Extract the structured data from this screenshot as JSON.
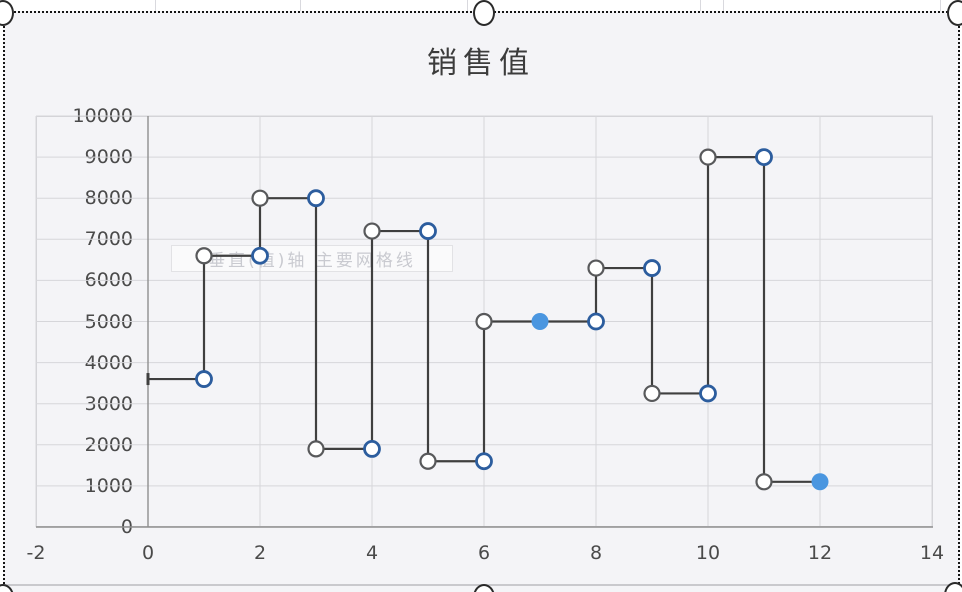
{
  "chart": {
    "title": "销售值",
    "ghost_tooltip": "垂直(值)轴 主要网格线"
  },
  "chart_data": {
    "type": "line",
    "subtype": "step-with-markers",
    "title": "销售值",
    "xlabel": "",
    "ylabel": "",
    "xlim": [
      -2,
      14
    ],
    "ylim": [
      0,
      10000
    ],
    "x_ticks": [
      "-2",
      "0",
      "2",
      "4",
      "6",
      "8",
      "10",
      "12",
      "14"
    ],
    "y_ticks": [
      "10000",
      "9000",
      "8000",
      "7000",
      "6000",
      "5000",
      "4000",
      "3000",
      "2000",
      "1000",
      "0"
    ],
    "grid": true,
    "legend_position": "none",
    "start_cap": {
      "x": 0,
      "value": 3600
    },
    "steps": [
      {
        "from_x": 0,
        "to_x": 1,
        "value": 3600
      },
      {
        "from_x": 1,
        "to_x": 2,
        "value": 6600
      },
      {
        "from_x": 2,
        "to_x": 3,
        "value": 8000
      },
      {
        "from_x": 3,
        "to_x": 4,
        "value": 1900
      },
      {
        "from_x": 4,
        "to_x": 5,
        "value": 7200
      },
      {
        "from_x": 5,
        "to_x": 6,
        "value": 1600
      },
      {
        "from_x": 6,
        "to_x": 8,
        "value": 5000
      },
      {
        "from_x": 8,
        "to_x": 9,
        "value": 6300
      },
      {
        "from_x": 9,
        "to_x": 10,
        "value": 3250
      },
      {
        "from_x": 10,
        "to_x": 11,
        "value": 9000
      },
      {
        "from_x": 11,
        "to_x": 12,
        "value": 1100
      }
    ],
    "markers": [
      {
        "x": 1,
        "value": 3600,
        "style": "blue-ring"
      },
      {
        "x": 1,
        "value": 6600,
        "style": "gray-ring"
      },
      {
        "x": 2,
        "value": 6600,
        "style": "blue-ring"
      },
      {
        "x": 2,
        "value": 8000,
        "style": "gray-ring"
      },
      {
        "x": 3,
        "value": 8000,
        "style": "blue-ring"
      },
      {
        "x": 3,
        "value": 1900,
        "style": "gray-ring"
      },
      {
        "x": 4,
        "value": 1900,
        "style": "blue-ring"
      },
      {
        "x": 4,
        "value": 7200,
        "style": "gray-ring"
      },
      {
        "x": 5,
        "value": 7200,
        "style": "blue-ring"
      },
      {
        "x": 5,
        "value": 1600,
        "style": "gray-ring"
      },
      {
        "x": 6,
        "value": 1600,
        "style": "blue-ring"
      },
      {
        "x": 6,
        "value": 5000,
        "style": "gray-ring"
      },
      {
        "x": 7,
        "value": 5000,
        "style": "blue-solid"
      },
      {
        "x": 8,
        "value": 5000,
        "style": "blue-ring"
      },
      {
        "x": 8,
        "value": 6300,
        "style": "gray-ring"
      },
      {
        "x": 9,
        "value": 6300,
        "style": "blue-ring"
      },
      {
        "x": 9,
        "value": 3250,
        "style": "gray-ring"
      },
      {
        "x": 10,
        "value": 3250,
        "style": "blue-ring"
      },
      {
        "x": 10,
        "value": 9000,
        "style": "gray-ring"
      },
      {
        "x": 11,
        "value": 9000,
        "style": "blue-ring"
      },
      {
        "x": 11,
        "value": 1100,
        "style": "gray-ring"
      },
      {
        "x": 12,
        "value": 1100,
        "style": "blue-solid"
      }
    ]
  },
  "colors": {
    "series_line": "#3f3f3f",
    "gray_ring_stroke": "#58595b",
    "blue_ring_stroke": "#2c5d9e",
    "blue_solid_fill": "#4a96e0",
    "marker_fill": "#ffffff",
    "gridline": "#d6d6da",
    "axis_line": "#8f8f8f",
    "tick_label": "#4a4a4a",
    "chart_bg": "#f4f4f7"
  },
  "selection": {
    "state": "chart-selected",
    "handle_positions": [
      "top-left",
      "top-center",
      "top-right",
      "bottom-left",
      "bottom-center",
      "bottom-right"
    ]
  }
}
